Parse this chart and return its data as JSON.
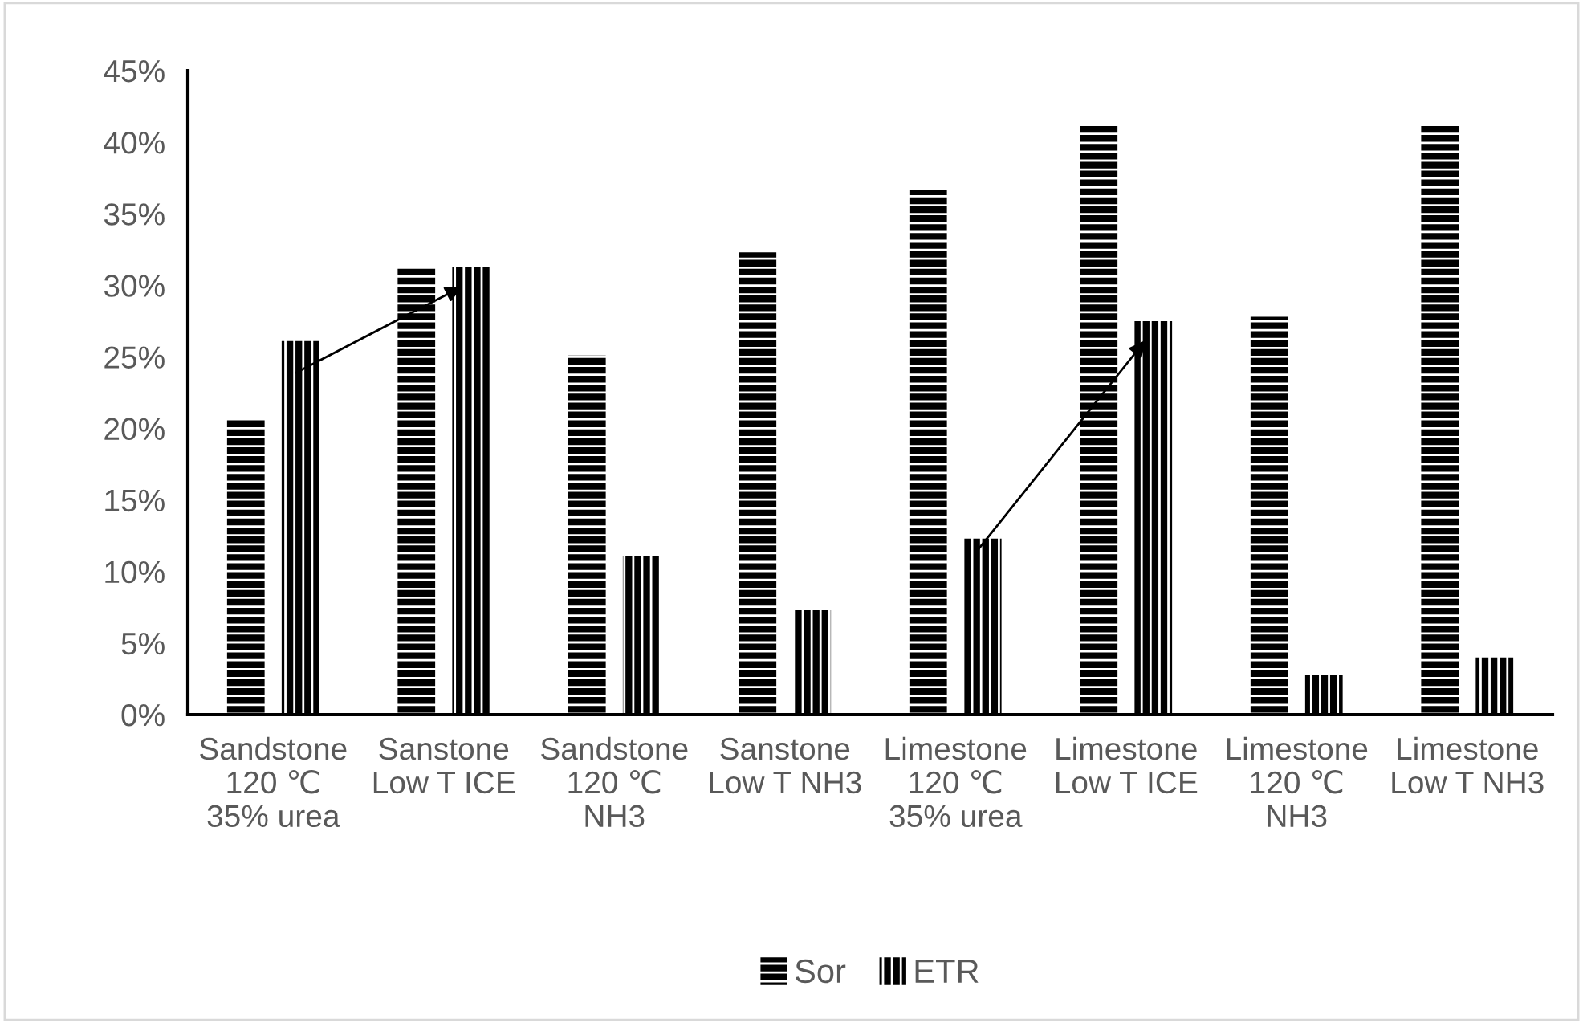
{
  "chart_data": {
    "type": "bar",
    "categories": [
      "Sandstone\n120 ℃\n35% urea",
      "Sanstone\nLow T ICE",
      "Sandstone\n120 ℃\nNH3",
      "Sanstone\nLow T NH3",
      "Limestone\n120 ℃\n35% urea",
      "Limestone\nLow T ICE",
      "Limestone\n120 ℃\nNH3",
      "Limestone\nLow T NH3"
    ],
    "series": [
      {
        "name": "Sor",
        "color": "#000000",
        "values": [
          20.7,
          31.3,
          25.1,
          32.3,
          36.7,
          41.3,
          27.8,
          41.3
        ]
      },
      {
        "name": "ETR",
        "color": "#000000",
        "values": [
          26.1,
          31.3,
          11.1,
          7.3,
          12.3,
          27.5,
          2.8,
          4.0
        ]
      }
    ],
    "ylim": [
      0,
      45
    ],
    "yticks": [
      {
        "value": 0,
        "label": "0%"
      },
      {
        "value": 5,
        "label": "5%"
      },
      {
        "value": 10,
        "label": "10%"
      },
      {
        "value": 15,
        "label": "15%"
      },
      {
        "value": 20,
        "label": "20%"
      },
      {
        "value": 25,
        "label": "25%"
      },
      {
        "value": 30,
        "label": "30%"
      },
      {
        "value": 35,
        "label": "35%"
      },
      {
        "value": 40,
        "label": "40%"
      },
      {
        "value": 45,
        "label": "45%"
      }
    ],
    "grid": false,
    "legend": "bottom"
  }
}
